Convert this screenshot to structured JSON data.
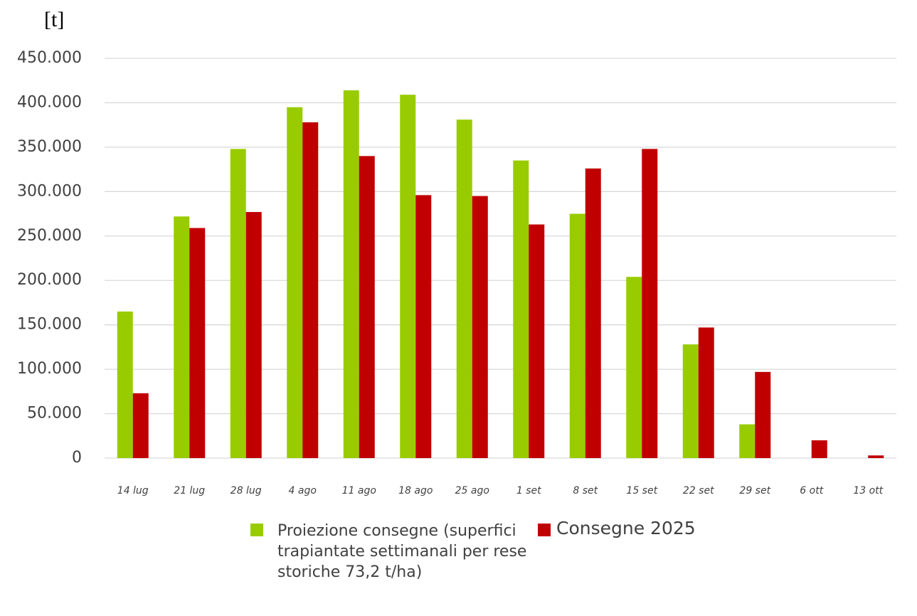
{
  "chart_data": {
    "type": "bar",
    "y_label": "[t]",
    "categories": [
      "14 lug",
      "21 lug",
      "28 lug",
      "4 ago",
      "11 ago",
      "18 ago",
      "25 ago",
      "1 set",
      "8 set",
      "15 set",
      "22 set",
      "29 set",
      "6 ott",
      "13 ott"
    ],
    "series": [
      {
        "name": "Proiezione consegne (superfici trapiantate settimanali per rese storiche 73,2 t/ha)",
        "color": "#99cc00",
        "values": [
          165000,
          272000,
          348000,
          395000,
          414000,
          409000,
          381000,
          335000,
          275000,
          204000,
          128000,
          38000,
          0,
          0
        ]
      },
      {
        "name": "Consegne 2025",
        "color": "#c00000",
        "values": [
          73000,
          259000,
          277000,
          378000,
          340000,
          296000,
          295000,
          263000,
          326000,
          348000,
          147000,
          97000,
          20000,
          3000
        ]
      }
    ],
    "ylim": [
      0,
      450000
    ],
    "yticks": [
      0,
      {
        "value": 50000,
        "label": "50.000"
      },
      {
        "value": 100000,
        "label": "100.000"
      },
      {
        "value": 150000,
        "label": "150.000"
      },
      {
        "value": 200000,
        "label": "200.000"
      },
      {
        "value": 250000,
        "label": "250.000"
      },
      {
        "value": 300000,
        "label": "300.000"
      },
      {
        "value": 350000,
        "label": "350.000"
      },
      {
        "value": 400000,
        "label": "400.000"
      },
      {
        "value": 450000,
        "label": "450.000"
      }
    ],
    "grid": true
  }
}
